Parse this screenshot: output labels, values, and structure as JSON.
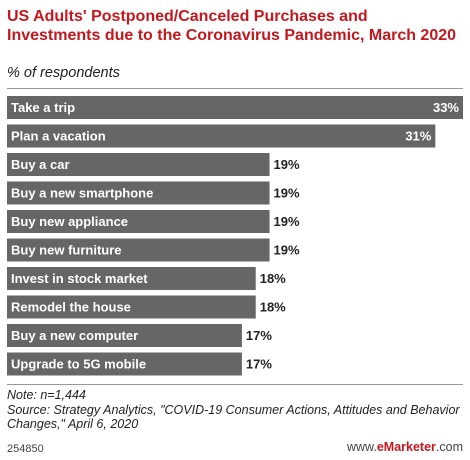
{
  "header": {
    "title": "US Adults' Postponed/Canceled Purchases and Investments due to the Coronavirus Pandemic, March 2020",
    "subtitle": "% of respondents"
  },
  "chart_data": {
    "type": "bar",
    "orientation": "horizontal",
    "categories": [
      "Take a trip",
      "Plan a vacation",
      "Buy a car",
      "Buy a new smartphone",
      "Buy new appliance",
      "Buy new furniture",
      "Invest in stock market",
      "Remodel the house",
      "Buy a new computer",
      "Upgrade to 5G mobile"
    ],
    "values": [
      33,
      31,
      19,
      19,
      19,
      19,
      18,
      18,
      17,
      17
    ],
    "value_labels": [
      "33%",
      "31%",
      "19%",
      "19%",
      "19%",
      "19%",
      "18%",
      "18%",
      "17%",
      "17%"
    ],
    "xlim": [
      0,
      33
    ],
    "bar_color": "#666666",
    "grid": false,
    "legend": "none"
  },
  "footer": {
    "note": "Note: n=1,444",
    "source": "Source: Strategy Analytics, \"COVID-19 Consumer Actions, Attitudes and Behavior Changes,\" April 6, 2020",
    "chart_id": "254850",
    "brand_prefix": "www.",
    "brand_name": "eMarketer",
    "brand_suffix": ".com"
  },
  "colors": {
    "title": "#c5181e",
    "bar": "#666666",
    "brand": "#c5181e"
  }
}
